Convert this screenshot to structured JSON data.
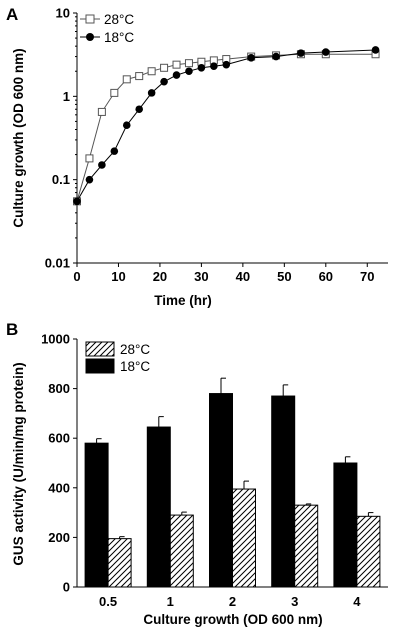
{
  "chart_data": [
    {
      "panel_label": "A",
      "type": "line",
      "xlabel": "Time (hr)",
      "ylabel": "Culture growth (OD 600 nm)",
      "xlim": [
        0,
        75
      ],
      "ylim": [
        0.01,
        10
      ],
      "yscale": "log",
      "xticks": [
        "0",
        "10",
        "20",
        "30",
        "40",
        "50",
        "60",
        "70"
      ],
      "yticks": [
        "0.01",
        "0.1",
        "1",
        "10"
      ],
      "legend": "top-left",
      "grid": false,
      "series": [
        {
          "name": "28°C",
          "marker": "open-square",
          "color": "#555555",
          "x": [
            0,
            3,
            6,
            9,
            12,
            15,
            18,
            21,
            24,
            27,
            30,
            33,
            36,
            42,
            48,
            54,
            60,
            72
          ],
          "y": [
            0.055,
            0.18,
            0.65,
            1.1,
            1.6,
            1.75,
            2.0,
            2.2,
            2.4,
            2.5,
            2.6,
            2.7,
            2.8,
            3.0,
            3.1,
            3.2,
            3.2,
            3.2
          ]
        },
        {
          "name": "18°C",
          "marker": "filled-circle",
          "color": "#000000",
          "x": [
            0,
            3,
            6,
            9,
            12,
            15,
            18,
            21,
            24,
            27,
            30,
            33,
            36,
            42,
            48,
            54,
            60,
            72
          ],
          "y": [
            0.055,
            0.1,
            0.15,
            0.22,
            0.45,
            0.7,
            1.1,
            1.5,
            1.8,
            2.0,
            2.2,
            2.3,
            2.4,
            2.9,
            3.0,
            3.3,
            3.4,
            3.6
          ]
        }
      ]
    },
    {
      "panel_label": "B",
      "type": "bar",
      "xlabel": "Culture growth (OD 600 nm)",
      "ylabel": "GUS activity (U/min/mg protein)",
      "categories": [
        "0.5",
        "1",
        "2",
        "3",
        "4"
      ],
      "ylim": [
        0,
        1000
      ],
      "yticks": [
        "0",
        "200",
        "400",
        "600",
        "800",
        "1000"
      ],
      "legend": "top-left",
      "grid": false,
      "series": [
        {
          "name": "28°C",
          "fill": "hatched",
          "values": [
            195,
            290,
            395,
            330,
            285
          ],
          "errors": [
            8,
            12,
            32,
            5,
            15
          ]
        },
        {
          "name": "18°C",
          "fill": "#000000",
          "values": [
            580,
            645,
            780,
            770,
            500
          ],
          "errors": [
            18,
            42,
            62,
            45,
            25
          ]
        }
      ]
    }
  ]
}
